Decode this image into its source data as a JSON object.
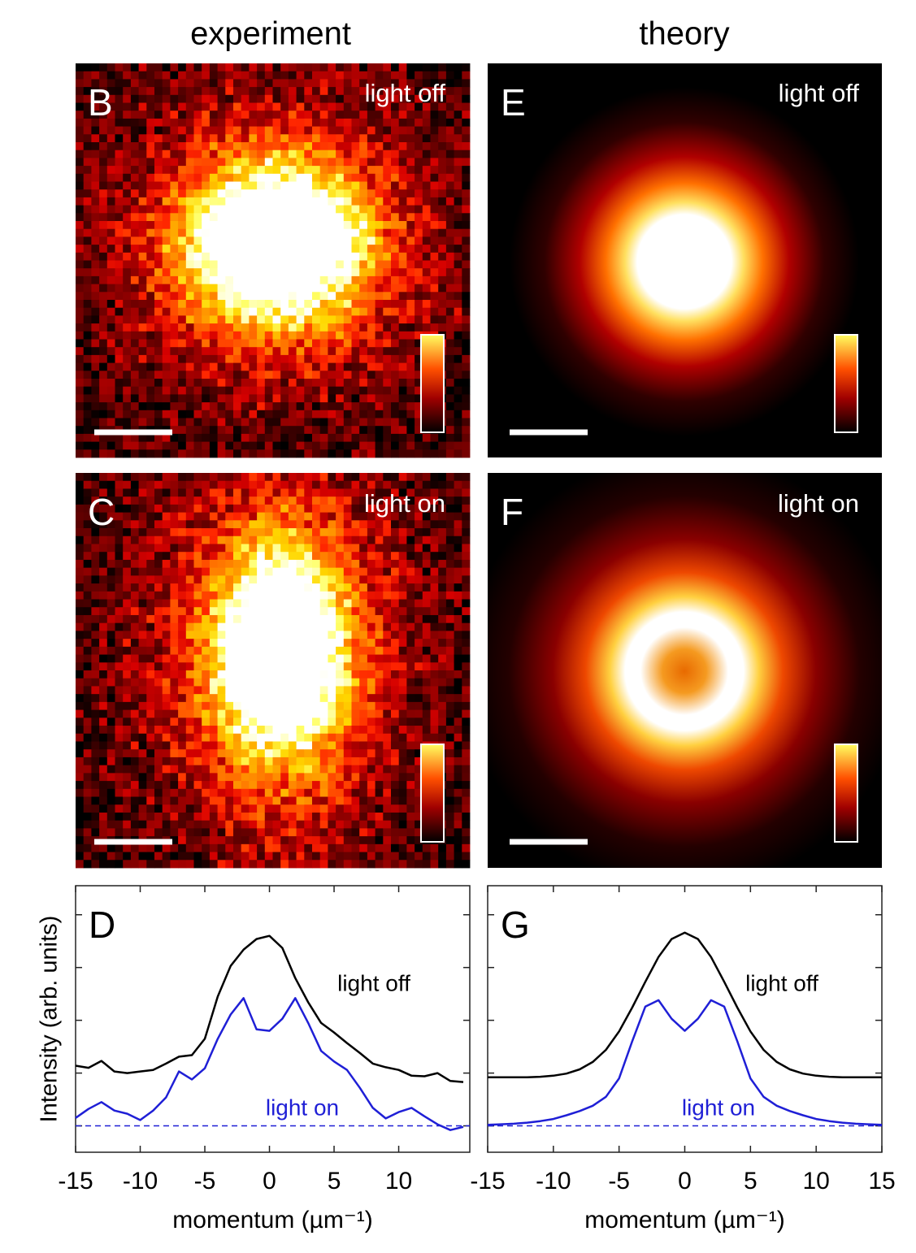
{
  "columns": [
    "experiment",
    "theory"
  ],
  "panels": [
    {
      "letter": "B",
      "label": "light off"
    },
    {
      "letter": "C",
      "label": "light on"
    },
    {
      "letter": "E",
      "label": "light off"
    },
    {
      "letter": "F",
      "label": "light on"
    }
  ],
  "chart_data": [
    {
      "type": "line",
      "letter": "D",
      "ylabel": "Intensity (arb. units)",
      "xlabel": "momentum (µm⁻¹)",
      "x": [
        -15,
        -14,
        -13,
        -12,
        -11,
        -10,
        -9,
        -8,
        -7,
        -6,
        -5,
        -4,
        -3,
        -2,
        -1,
        0,
        1,
        2,
        3,
        4,
        5,
        6,
        7,
        8,
        9,
        10,
        11,
        12,
        13,
        14,
        15
      ],
      "series": [
        {
          "name": "light off",
          "color": "#000000",
          "values": [
            1.14,
            1.1,
            1.23,
            1.03,
            1.0,
            1.03,
            1.06,
            1.18,
            1.31,
            1.34,
            1.65,
            2.45,
            3.03,
            3.34,
            3.54,
            3.6,
            3.37,
            2.8,
            2.34,
            1.95,
            1.77,
            1.57,
            1.38,
            1.18,
            1.11,
            1.06,
            0.95,
            0.94,
            1.0,
            0.85,
            0.83
          ]
        },
        {
          "name": "light on",
          "color": "#1f1fd6",
          "values": [
            0.15,
            0.32,
            0.45,
            0.29,
            0.23,
            0.11,
            0.29,
            0.54,
            1.03,
            0.88,
            1.09,
            1.65,
            2.11,
            2.42,
            1.83,
            1.8,
            2.03,
            2.42,
            1.95,
            1.42,
            1.22,
            1.06,
            0.72,
            0.34,
            0.14,
            0.26,
            0.34,
            0.18,
            0.03,
            -0.08,
            -0.02
          ]
        }
      ],
      "reference_line": 0,
      "xlim": [
        -15,
        15.5
      ],
      "xticks": [
        -15,
        -10,
        -5,
        0,
        5,
        10
      ],
      "ylim": [
        -0.5,
        4.55
      ],
      "yticks": [
        0,
        1,
        2,
        3,
        4
      ]
    },
    {
      "type": "line",
      "letter": "G",
      "xlabel": "momentum (µm⁻¹)",
      "x": [
        -15,
        -14,
        -13,
        -12,
        -11,
        -10,
        -9,
        -8,
        -7,
        -6,
        -5,
        -4,
        -3,
        -2,
        -1,
        0,
        1,
        2,
        3,
        4,
        5,
        6,
        7,
        8,
        9,
        10,
        11,
        12,
        13,
        14,
        15
      ],
      "series": [
        {
          "name": "light off",
          "color": "#000000",
          "values": [
            0.92,
            0.92,
            0.92,
            0.92,
            0.93,
            0.95,
            0.99,
            1.07,
            1.21,
            1.44,
            1.79,
            2.24,
            2.73,
            3.2,
            3.54,
            3.66,
            3.54,
            3.2,
            2.73,
            2.24,
            1.79,
            1.44,
            1.21,
            1.07,
            0.99,
            0.95,
            0.93,
            0.92,
            0.92,
            0.92,
            0.92
          ]
        },
        {
          "name": "light on",
          "color": "#1f1fd6",
          "values": [
            0.02,
            0.03,
            0.04,
            0.06,
            0.09,
            0.13,
            0.2,
            0.28,
            0.38,
            0.55,
            0.9,
            1.6,
            2.26,
            2.38,
            2.03,
            1.8,
            2.03,
            2.38,
            2.26,
            1.6,
            0.9,
            0.55,
            0.38,
            0.28,
            0.2,
            0.13,
            0.09,
            0.06,
            0.04,
            0.03,
            0.02
          ]
        }
      ],
      "reference_line": 0,
      "xlim": [
        -15,
        15
      ],
      "xticks": [
        -15,
        -10,
        -5,
        0,
        5,
        10,
        15
      ],
      "ylim": [
        -0.5,
        4.55
      ],
      "yticks": [
        0,
        1,
        2,
        3,
        4
      ]
    }
  ]
}
